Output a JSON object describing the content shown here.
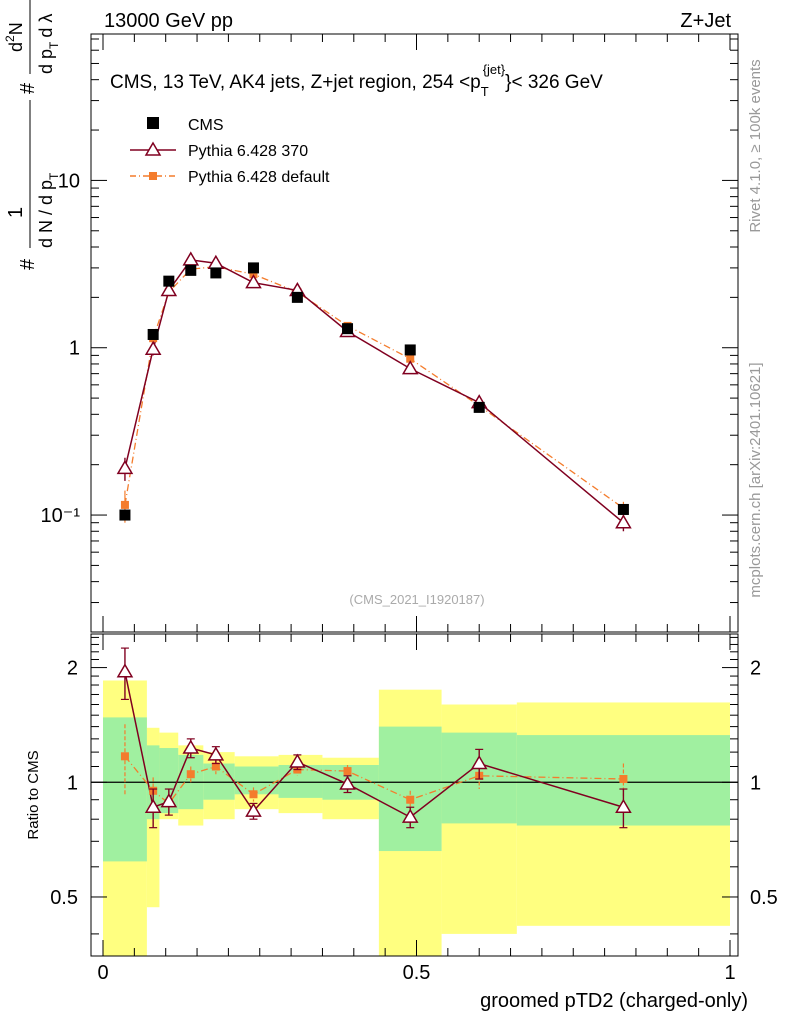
{
  "header": {
    "left": "13000 GeV pp",
    "right": "Z+Jet"
  },
  "plot_title": {
    "prefix": "CMS, 13 TeV, AK4 jets, Z+jet region, 254 <p",
    "sub": "T",
    "sup": "{jet}",
    "suffix": "}< 326 GeV"
  },
  "side_labels": {
    "rivet": "Rivet 4.1.0, ≥ 100k events",
    "mcplots": "mcplots.cern.ch [arXiv:2401.10621]"
  },
  "analysis_id": "(CMS_2021_I1920187)",
  "ylabel_parts": [
    "#",
    "1",
    "d N / d p",
    "T",
    "#",
    "d",
    "2",
    "N",
    "d p",
    "T",
    "d λ"
  ],
  "colors": {
    "data": "#000000",
    "pythia370": "#800020",
    "pythia_default": "#f47c2c",
    "band_inner": "#a0f0a0",
    "band_outer": "#ffff80"
  },
  "chart_data": [
    {
      "type": "scatter",
      "panel": "main",
      "title": "CMS, 13 TeV, AK4 jets, Z+jet region, 254 <p_T^{jet}< 326 GeV",
      "xlabel": "groomed pTD2 (charged-only)",
      "yscale": "log",
      "ylim": [
        0.02,
        75
      ],
      "xlim": [
        -0.02,
        1.0
      ],
      "y_tick_labels": [
        "10",
        "1",
        "10⁻¹"
      ],
      "legend": [
        "CMS",
        "Pythia 6.428 370",
        "Pythia 6.428 default"
      ],
      "legend_position": "top-left",
      "x": [
        0.035,
        0.08,
        0.105,
        0.14,
        0.18,
        0.24,
        0.31,
        0.39,
        0.49,
        0.6,
        0.83
      ],
      "series": [
        {
          "name": "CMS",
          "values": [
            0.1,
            1.2,
            2.5,
            2.9,
            2.8,
            3.0,
            2.0,
            1.3,
            0.97,
            0.44,
            0.108
          ]
        },
        {
          "name": "Pythia 6.428 370",
          "values": [
            0.19,
            0.98,
            2.2,
            3.35,
            3.2,
            2.45,
            2.2,
            1.25,
            0.75,
            0.47,
            0.09
          ],
          "errors": [
            0.03,
            0.08,
            0.15,
            0.2,
            0.15,
            0.12,
            0.1,
            0.07,
            0.05,
            0.04,
            0.01
          ]
        },
        {
          "name": "Pythia 6.428 default",
          "values": [
            0.115,
            1.14,
            2.15,
            2.95,
            3.05,
            2.75,
            2.15,
            1.35,
            0.86,
            0.45,
            0.11
          ],
          "errors": [
            0.025,
            0.08,
            0.12,
            0.15,
            0.15,
            0.12,
            0.1,
            0.06,
            0.05,
            0.04,
            0.01
          ]
        }
      ]
    },
    {
      "type": "scatter",
      "panel": "ratio",
      "ylabel": "Ratio to CMS",
      "xlabel": "groomed pTD2 (charged-only)",
      "ylim": [
        0.35,
        2.45
      ],
      "xlim": [
        -0.02,
        1.0
      ],
      "x_tick_labels": [
        "0",
        "0.5",
        "1"
      ],
      "y_tick_labels": [
        "2",
        "1",
        "0.5"
      ],
      "x": [
        0.035,
        0.08,
        0.105,
        0.14,
        0.18,
        0.24,
        0.31,
        0.39,
        0.49,
        0.6,
        0.83
      ],
      "series": [
        {
          "name": "Pythia 6.428 370",
          "values": [
            1.95,
            0.86,
            0.89,
            1.23,
            1.18,
            0.84,
            1.13,
            0.99,
            0.81,
            1.12,
            0.86
          ],
          "errors": [
            0.3,
            0.1,
            0.07,
            0.07,
            0.06,
            0.04,
            0.05,
            0.05,
            0.05,
            0.1,
            0.1
          ]
        },
        {
          "name": "Pythia 6.428 default",
          "values": [
            1.17,
            0.95,
            0.88,
            1.05,
            1.1,
            0.93,
            1.08,
            1.07,
            0.9,
            1.04,
            1.02
          ],
          "errors": [
            0.25,
            0.08,
            0.05,
            0.05,
            0.05,
            0.04,
            0.04,
            0.04,
            0.05,
            0.08,
            0.1
          ]
        }
      ],
      "bands": [
        {
          "x0": 0.0,
          "x1": 0.07,
          "inner": [
            0.62,
            1.48
          ],
          "outer": [
            0.35,
            1.85
          ]
        },
        {
          "x0": 0.07,
          "x1": 0.09,
          "inner": [
            0.8,
            1.25
          ],
          "outer": [
            0.47,
            1.39
          ]
        },
        {
          "x0": 0.09,
          "x1": 0.12,
          "inner": [
            0.83,
            1.23
          ],
          "outer": [
            0.8,
            1.35
          ]
        },
        {
          "x0": 0.12,
          "x1": 0.16,
          "inner": [
            0.85,
            1.18
          ],
          "outer": [
            0.77,
            1.25
          ]
        },
        {
          "x0": 0.16,
          "x1": 0.21,
          "inner": [
            0.9,
            1.12
          ],
          "outer": [
            0.8,
            1.2
          ]
        },
        {
          "x0": 0.21,
          "x1": 0.28,
          "inner": [
            0.93,
            1.1
          ],
          "outer": [
            0.85,
            1.17
          ]
        },
        {
          "x0": 0.28,
          "x1": 0.35,
          "inner": [
            0.91,
            1.11
          ],
          "outer": [
            0.83,
            1.18
          ]
        },
        {
          "x0": 0.35,
          "x1": 0.44,
          "inner": [
            0.9,
            1.11
          ],
          "outer": [
            0.8,
            1.16
          ]
        },
        {
          "x0": 0.44,
          "x1": 0.54,
          "inner": [
            0.66,
            1.4
          ],
          "outer": [
            0.35,
            1.75
          ]
        },
        {
          "x0": 0.54,
          "x1": 0.66,
          "inner": [
            0.78,
            1.35
          ],
          "outer": [
            0.4,
            1.6
          ]
        },
        {
          "x0": 0.66,
          "x1": 1.0,
          "inner": [
            0.77,
            1.33
          ],
          "outer": [
            0.42,
            1.62
          ]
        }
      ]
    }
  ]
}
